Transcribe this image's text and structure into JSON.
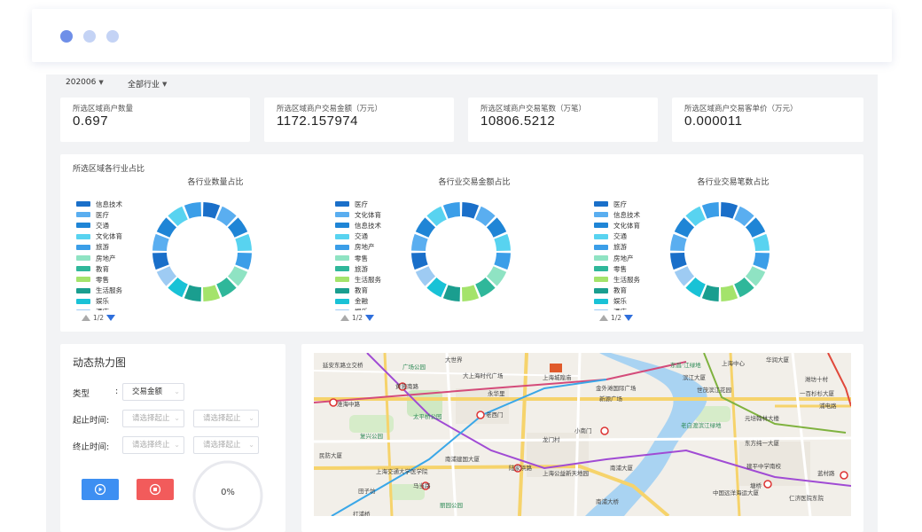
{
  "window": {
    "dots": [
      "#6f8fe8",
      "#c4d3f5",
      "#c4d3f5"
    ]
  },
  "filters": {
    "month": "202006",
    "industry": "全部行业"
  },
  "kpis": [
    {
      "label": "所选区域商户数量",
      "value": "0.697"
    },
    {
      "label": "所选区域商户交易金额（万元）",
      "value": "1172.157974"
    },
    {
      "label": "所选区域商户交易笔数（万笔）",
      "value": "10806.5212"
    },
    {
      "label": "所选区域商户交易客单价（万元）",
      "value": "0.000011"
    }
  ],
  "industry_panel": {
    "title": "所选区域各行业占比",
    "charts": [
      {
        "title": "各行业数量占比",
        "legend": [
          "信息技术",
          "医疗",
          "交通",
          "文化体育",
          "旅游",
          "房地产",
          "教育",
          "零售",
          "生活服务",
          "娱乐",
          "酒店"
        ],
        "pager": "1/2"
      },
      {
        "title": "各行业交易金额占比",
        "legend": [
          "医疗",
          "文化体育",
          "信息技术",
          "交通",
          "房地产",
          "零售",
          "旅游",
          "生活服务",
          "教育",
          "金融",
          "娱乐"
        ],
        "pager": "1/2"
      },
      {
        "title": "各行业交易笔数占比",
        "legend": [
          "医疗",
          "信息技术",
          "文化体育",
          "交通",
          "旅游",
          "房地产",
          "零售",
          "生活服务",
          "教育",
          "娱乐",
          "酒店"
        ],
        "pager": "1/2"
      }
    ],
    "palette": [
      "#1a6fc9",
      "#5aaef0",
      "#1f85d6",
      "#58d3f0",
      "#3b9ee8",
      "#8fe3c3",
      "#2fb79a",
      "#a4e36b",
      "#1a9e8f",
      "#19c2d6",
      "#9ecbf3"
    ]
  },
  "heatmap": {
    "title": "动态热力图",
    "type_label": "类型",
    "type_colon": ":",
    "type_value": "交易金额",
    "start_label": "起止时间:",
    "end_label": "终止时间:",
    "placeholder": "请选择起止",
    "placeholder2": "请选择终止",
    "progress": "0%",
    "progress_fraction": 0
  },
  "map": {
    "labels": [
      {
        "t": "延安东路立交桥",
        "c": ""
      },
      {
        "t": "广场公园",
        "c": "green"
      },
      {
        "t": "大世界",
        "c": ""
      },
      {
        "t": "大上海时代广场",
        "c": ""
      },
      {
        "t": "上海城隍庙",
        "c": ""
      },
      {
        "t": "东昌·江绿地",
        "c": "green"
      },
      {
        "t": "上海中心",
        "c": ""
      },
      {
        "t": "华润大厦",
        "c": ""
      },
      {
        "t": "黄陂南路",
        "c": ""
      },
      {
        "t": "永华里",
        "c": ""
      },
      {
        "t": "金外滩国际广场",
        "c": ""
      },
      {
        "t": "滨江大厦",
        "c": ""
      },
      {
        "t": "世茂滨江花园",
        "c": ""
      },
      {
        "t": "一百杉杉大厦",
        "c": ""
      },
      {
        "t": "淮海中路",
        "c": ""
      },
      {
        "t": "太平桥公园",
        "c": "green"
      },
      {
        "t": "老西门",
        "c": ""
      },
      {
        "t": "新源广场",
        "c": ""
      },
      {
        "t": "元培翰林大楼",
        "c": ""
      },
      {
        "t": "浦电路",
        "c": ""
      },
      {
        "t": "复兴公园",
        "c": "green"
      },
      {
        "t": "龙门村",
        "c": ""
      },
      {
        "t": "小南门",
        "c": ""
      },
      {
        "t": "老白渡滨江绿地",
        "c": "green"
      },
      {
        "t": "东方纯一大厦",
        "c": ""
      },
      {
        "t": "民防大厦",
        "c": ""
      },
      {
        "t": "南浦建国大厦",
        "c": ""
      },
      {
        "t": "陆家浜路",
        "c": ""
      },
      {
        "t": "南浦大厦",
        "c": ""
      },
      {
        "t": "建平中学南校",
        "c": ""
      },
      {
        "t": "上海交通大学医学院",
        "c": ""
      },
      {
        "t": "马当路",
        "c": ""
      },
      {
        "t": "上海公益新天地园",
        "c": ""
      },
      {
        "t": "塘桥",
        "c": ""
      },
      {
        "t": "蓝村路",
        "c": ""
      },
      {
        "t": "田子坊",
        "c": ""
      },
      {
        "t": "丽园公园",
        "c": "green"
      },
      {
        "t": "南浦大桥",
        "c": ""
      },
      {
        "t": "中国远洋海运大厦",
        "c": ""
      },
      {
        "t": "仁济医院东院",
        "c": ""
      },
      {
        "t": "打浦桥",
        "c": ""
      },
      {
        "t": "潍坊十村",
        "c": ""
      }
    ]
  }
}
